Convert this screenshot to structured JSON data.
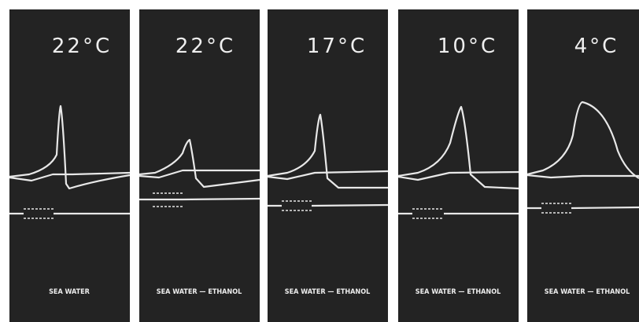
{
  "panels": [
    {
      "temperature": "22°C",
      "caption": "SEA WATER"
    },
    {
      "temperature": "22°C",
      "caption": "SEA WATER — ETHANOL"
    },
    {
      "temperature": "17°C",
      "caption": "SEA WATER — ETHANOL"
    },
    {
      "temperature": "10°C",
      "caption": "SEA WATER — ETHANOL"
    },
    {
      "temperature": "4°C",
      "caption": "SEA WATER — ETHANOL"
    }
  ]
}
